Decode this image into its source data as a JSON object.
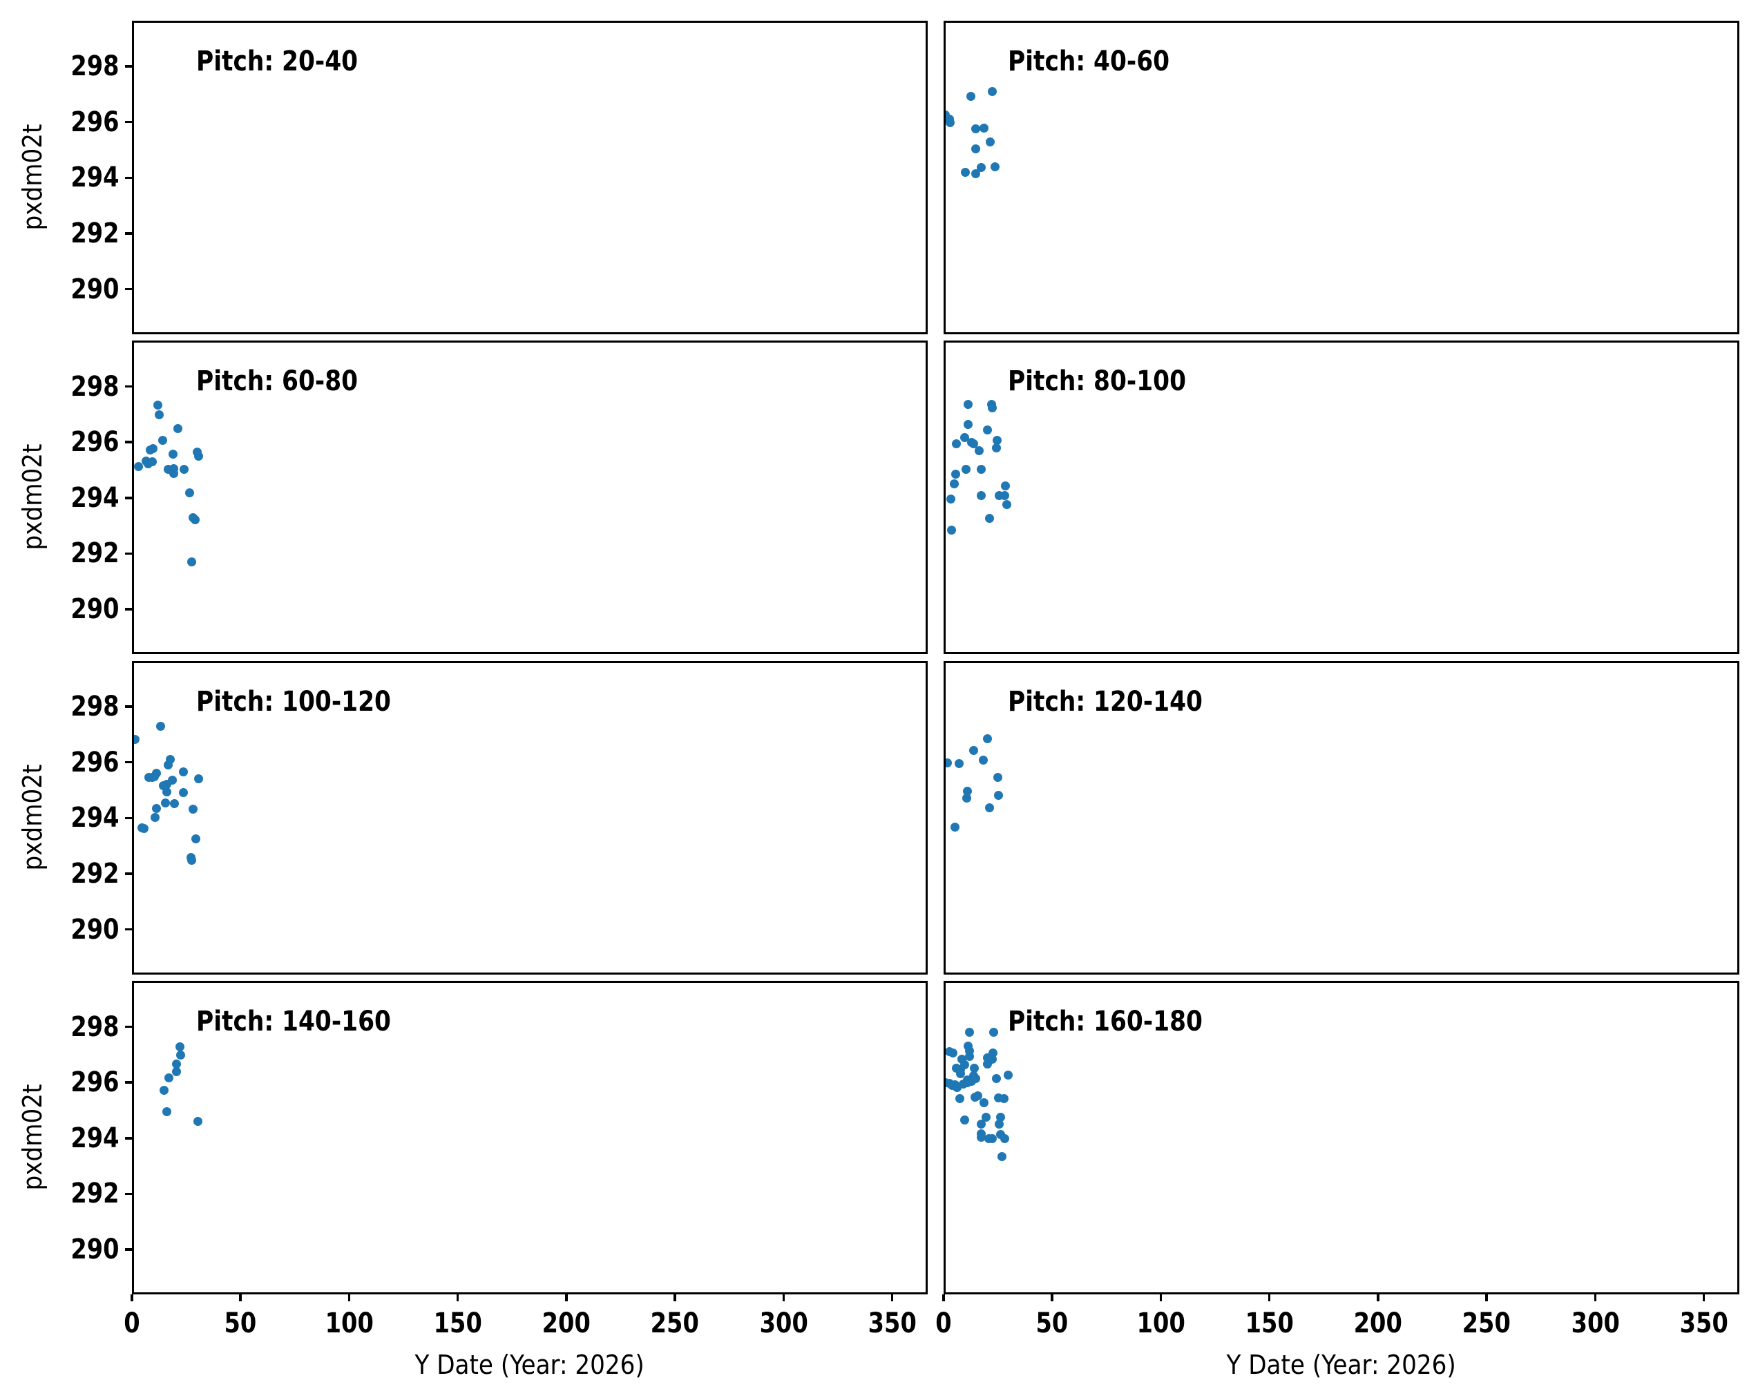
{
  "figure": {
    "background": "#ffffff",
    "text_color": "#000000"
  },
  "chart_data": {
    "type": "scatter",
    "grid": false,
    "marker_color": "#1f77b4",
    "xlabel": "Y Date (Year: 2026)",
    "ylabel": "pxdm02t",
    "x_ticks": [
      0,
      50,
      100,
      150,
      200,
      250,
      300,
      350
    ],
    "y_ticks": [
      298,
      296,
      294,
      292,
      290
    ],
    "xlim": [
      0,
      366
    ],
    "ylim": [
      288.4,
      299.6
    ],
    "layout": {
      "rows": 4,
      "cols": 2,
      "shared_x": true,
      "shared_y": true,
      "legend": false
    },
    "panels": [
      {
        "title": "Pitch: 20-40",
        "points": []
      },
      {
        "title": "Pitch: 40-60",
        "points": [
          [
            12.6,
            296.91
          ],
          [
            22.7,
            297.09
          ],
          [
            0.9,
            296.24
          ],
          [
            2.8,
            296.09
          ],
          [
            3.2,
            295.97
          ],
          [
            14.8,
            295.75
          ],
          [
            18.9,
            295.77
          ],
          [
            21.5,
            295.27
          ],
          [
            15.1,
            295.03
          ],
          [
            23.7,
            294.38
          ],
          [
            17.4,
            294.35
          ],
          [
            10.1,
            294.18
          ],
          [
            15.1,
            294.13
          ]
        ]
      },
      {
        "title": "Pitch: 60-80",
        "points": [
          [
            12.2,
            297.33
          ],
          [
            12.6,
            296.98
          ],
          [
            21.4,
            296.48
          ],
          [
            14.2,
            296.05
          ],
          [
            8.6,
            295.71
          ],
          [
            9.9,
            295.76
          ],
          [
            19.2,
            295.57
          ],
          [
            30.3,
            295.62
          ],
          [
            30.7,
            295.49
          ],
          [
            3.2,
            295.12
          ],
          [
            6.8,
            295.31
          ],
          [
            7.7,
            295.22
          ],
          [
            9.5,
            295.28
          ],
          [
            16.8,
            295.01
          ],
          [
            19.5,
            295.04
          ],
          [
            19.5,
            294.87
          ],
          [
            24.2,
            295.01
          ],
          [
            26.8,
            294.18
          ],
          [
            28.4,
            293.28
          ],
          [
            29.4,
            293.21
          ],
          [
            27.7,
            291.7
          ]
        ]
      },
      {
        "title": "Pitch: 80-100",
        "points": [
          [
            11.3,
            297.35
          ],
          [
            22.1,
            297.35
          ],
          [
            22.5,
            297.23
          ],
          [
            11.6,
            296.63
          ],
          [
            20.2,
            296.42
          ],
          [
            9.7,
            296.15
          ],
          [
            6.0,
            295.92
          ],
          [
            13.0,
            295.97
          ],
          [
            13.9,
            295.92
          ],
          [
            24.9,
            296.05
          ],
          [
            24.6,
            295.78
          ],
          [
            16.5,
            295.68
          ],
          [
            10.5,
            295.01
          ],
          [
            17.4,
            295.01
          ],
          [
            5.8,
            294.83
          ],
          [
            5.0,
            294.5
          ],
          [
            28.6,
            294.41
          ],
          [
            3.6,
            293.94
          ],
          [
            17.4,
            294.08
          ],
          [
            25.8,
            294.08
          ],
          [
            28.4,
            294.08
          ],
          [
            29.4,
            293.75
          ],
          [
            21.2,
            293.24
          ],
          [
            3.9,
            292.82
          ]
        ]
      },
      {
        "title": "Pitch: 100-120",
        "points": [
          [
            13.2,
            297.29
          ],
          [
            1.6,
            296.8
          ],
          [
            17.7,
            296.09
          ],
          [
            16.8,
            295.9
          ],
          [
            23.7,
            295.64
          ],
          [
            11.6,
            295.6
          ],
          [
            8.1,
            295.45
          ],
          [
            9.5,
            295.45
          ],
          [
            10.4,
            295.47
          ],
          [
            31.0,
            295.39
          ],
          [
            18.9,
            295.35
          ],
          [
            16.3,
            295.2
          ],
          [
            14.7,
            295.14
          ],
          [
            16.3,
            294.93
          ],
          [
            23.7,
            294.91
          ],
          [
            15.6,
            294.54
          ],
          [
            19.8,
            294.5
          ],
          [
            28.2,
            294.31
          ],
          [
            11.3,
            294.34
          ],
          [
            10.7,
            294.02
          ],
          [
            4.7,
            293.63
          ],
          [
            5.6,
            293.61
          ],
          [
            29.7,
            293.25
          ],
          [
            27.4,
            292.57
          ],
          [
            27.7,
            292.47
          ]
        ]
      },
      {
        "title": "Pitch: 120-140",
        "points": [
          [
            20.4,
            296.84
          ],
          [
            13.9,
            296.41
          ],
          [
            18.3,
            296.07
          ],
          [
            1.8,
            295.96
          ],
          [
            7.3,
            295.93
          ],
          [
            25.2,
            295.45
          ],
          [
            11.0,
            294.96
          ],
          [
            10.7,
            294.69
          ],
          [
            25.3,
            294.81
          ],
          [
            21.2,
            294.35
          ],
          [
            5.5,
            293.65
          ]
        ]
      },
      {
        "title": "Pitch: 140-160",
        "points": [
          [
            22.1,
            297.28
          ],
          [
            22.6,
            296.97
          ],
          [
            20.8,
            296.64
          ],
          [
            20.8,
            296.37
          ],
          [
            17.1,
            296.16
          ],
          [
            15.1,
            295.71
          ],
          [
            16.3,
            294.94
          ],
          [
            30.5,
            294.6
          ]
        ]
      },
      {
        "title": "Pitch: 160-180",
        "points": [
          [
            12.1,
            297.78
          ],
          [
            23.1,
            297.8
          ],
          [
            11.6,
            297.3
          ],
          [
            2.8,
            297.09
          ],
          [
            4.4,
            297.05
          ],
          [
            12.1,
            297.11
          ],
          [
            12.1,
            296.91
          ],
          [
            22.8,
            297.05
          ],
          [
            8.6,
            296.82
          ],
          [
            20.2,
            296.86
          ],
          [
            22.6,
            296.82
          ],
          [
            20.2,
            296.64
          ],
          [
            6.2,
            296.51
          ],
          [
            8.1,
            296.45
          ],
          [
            7.8,
            296.29
          ],
          [
            14.4,
            296.49
          ],
          [
            9.7,
            296.62
          ],
          [
            14.1,
            296.22
          ],
          [
            11.0,
            296.09
          ],
          [
            13.0,
            296.04
          ],
          [
            15.1,
            296.12
          ],
          [
            24.6,
            296.14
          ],
          [
            29.9,
            296.25
          ],
          [
            0.9,
            295.99
          ],
          [
            2.8,
            295.96
          ],
          [
            4.1,
            295.89
          ],
          [
            5.4,
            295.91
          ],
          [
            6.3,
            295.81
          ],
          [
            9.2,
            295.93
          ],
          [
            11.0,
            295.98
          ],
          [
            7.6,
            295.42
          ],
          [
            14.7,
            295.46
          ],
          [
            16.0,
            295.52
          ],
          [
            18.9,
            295.25
          ],
          [
            25.5,
            295.44
          ],
          [
            28.1,
            295.42
          ],
          [
            10.0,
            294.65
          ],
          [
            19.7,
            294.73
          ],
          [
            17.4,
            294.5
          ],
          [
            26.3,
            294.74
          ],
          [
            25.8,
            294.5
          ],
          [
            17.6,
            294.15
          ],
          [
            17.6,
            294.02
          ],
          [
            20.9,
            293.97
          ],
          [
            22.5,
            293.97
          ],
          [
            26.5,
            294.12
          ],
          [
            28.4,
            293.97
          ],
          [
            27.0,
            293.32
          ]
        ]
      }
    ]
  }
}
